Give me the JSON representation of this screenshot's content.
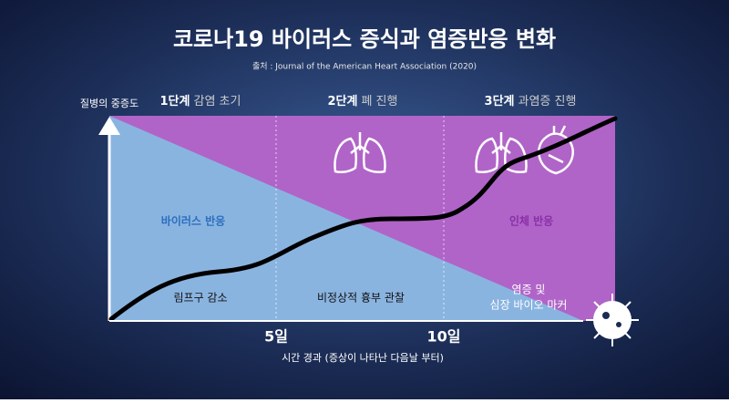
{
  "title": "코로나19 바이러스 증식과 염증반응 변화",
  "source": "출처 : Journal of the American Heart Association (2020)",
  "y_axis_label": "질병의 중증도",
  "stages": [
    {
      "number": "1단계",
      "name": "감염 초기"
    },
    {
      "number": "2단계",
      "name": "폐 진행"
    },
    {
      "number": "3단계",
      "name": "과염증 진행"
    }
  ],
  "regions": {
    "virus": "바이러스 반응",
    "host": "인체 반응"
  },
  "findings": [
    [
      "림프구 감소"
    ],
    [
      "비정상적 흉부 관찰"
    ],
    [
      "염증 및",
      "심장 바이오 마커"
    ]
  ],
  "x_ticks": [
    "5일",
    "10일"
  ],
  "x_axis_label": "시간 경과 (증상이 나타난 다음날 부터)"
}
